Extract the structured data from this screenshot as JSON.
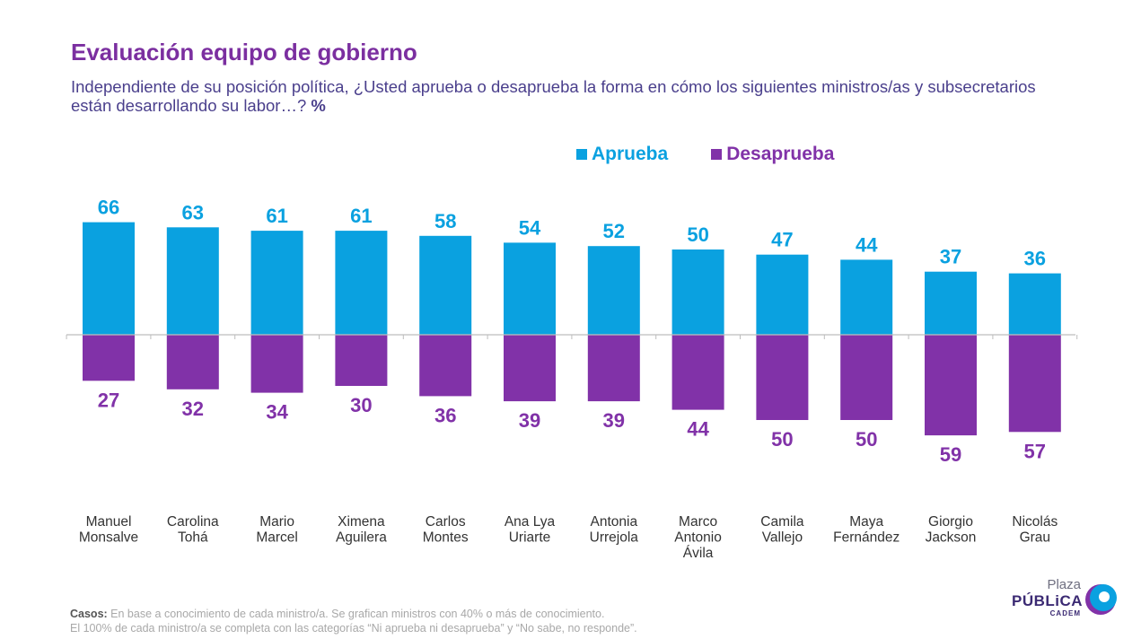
{
  "header": {
    "title": "Evaluación equipo de gobierno",
    "subtitle": "Independiente de su posición política, ¿Usted aprueba o desaprueba la forma en cómo los siguientes ministros/as y subsecretarios están desarrollando su labor…?",
    "subtitle_unit": "%"
  },
  "chart_data": {
    "type": "bar",
    "categories": [
      [
        "Manuel",
        "Monsalve"
      ],
      [
        "Carolina",
        "Tohá"
      ],
      [
        "Mario",
        "Marcel"
      ],
      [
        "Ximena",
        "Aguilera"
      ],
      [
        "Carlos",
        "Montes"
      ],
      [
        "Ana Lya",
        "Uriarte"
      ],
      [
        "Antonia",
        "Urrejola"
      ],
      [
        "Marco",
        "Antonio",
        "Ávila"
      ],
      [
        "Camila",
        "Vallejo"
      ],
      [
        "Maya",
        "Fernández"
      ],
      [
        "Giorgio",
        "Jackson"
      ],
      [
        "Nicolás",
        "Grau"
      ]
    ],
    "series": [
      {
        "name": "Aprueba",
        "color": "#0aa1e0",
        "direction": "up",
        "values": [
          66,
          63,
          61,
          61,
          58,
          54,
          52,
          50,
          47,
          44,
          37,
          36
        ]
      },
      {
        "name": "Desaprueba",
        "color": "#8132a8",
        "direction": "down",
        "values": [
          27,
          32,
          34,
          30,
          36,
          39,
          39,
          44,
          50,
          50,
          59,
          57
        ]
      }
    ],
    "legend_position": "top-right",
    "grid": false
  },
  "footer": {
    "casos_label": "Casos:",
    "line1": "En base a conocimiento de cada ministro/a. Se grafican ministros con 40% o más de conocimiento.",
    "line2": "El 100% de cada ministro/a se completa con las categorías “Ni aprueba ni desaprueba” y “No sabe, no responde”."
  },
  "logo": {
    "line1": "Plaza",
    "line2": "PÚBLiCA",
    "line3": "CADEM"
  }
}
